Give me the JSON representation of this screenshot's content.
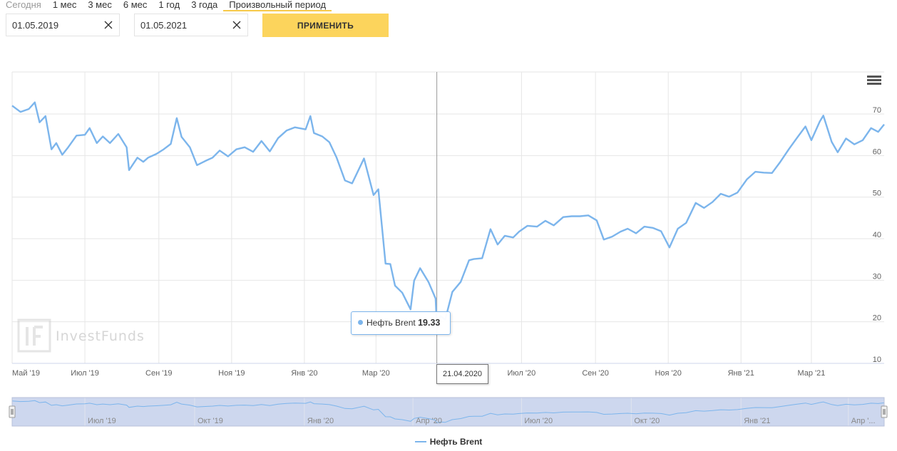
{
  "period_tabs": [
    {
      "label": "Сегодня"
    },
    {
      "label": "1 мес"
    },
    {
      "label": "3 мес"
    },
    {
      "label": "6 мес"
    },
    {
      "label": "1 год"
    },
    {
      "label": "3 года"
    },
    {
      "label": "Произвольный период"
    }
  ],
  "date_from": {
    "value": "01.05.2019"
  },
  "date_to": {
    "value": "01.05.2021"
  },
  "apply_label": "ПРИМЕНИТЬ",
  "watermark": "InvestFunds",
  "tooltip": {
    "series": "Нефть Brent",
    "value": "19.33"
  },
  "crosshair_label": "21.04.2020",
  "icons": {
    "menu": "hamburger-menu-icon",
    "clear": "close-icon",
    "handle": "navigator-handle-icon"
  },
  "colors": {
    "series": "#7cb5ec",
    "accent": "#fcd45c",
    "navigator_mask": "#cdd7ee"
  },
  "chart_data": {
    "type": "line",
    "title": "",
    "ylim": [
      10,
      70
    ],
    "y_ticks": [
      10,
      20,
      30,
      40,
      50,
      60,
      70
    ],
    "x_range": [
      "2019-05-01",
      "2021-05-01"
    ],
    "x_tick_labels": [
      {
        "date": "2019-05-01",
        "label": "Май '19"
      },
      {
        "date": "2019-07-01",
        "label": "Июл '19"
      },
      {
        "date": "2019-09-01",
        "label": "Сен '19"
      },
      {
        "date": "2019-11-01",
        "label": "Ноя '19"
      },
      {
        "date": "2020-01-01",
        "label": "Янв '20"
      },
      {
        "date": "2020-03-01",
        "label": "Мар '20"
      },
      {
        "date": "2020-07-01",
        "label": "Июл '20"
      },
      {
        "date": "2020-09-01",
        "label": "Сен '20"
      },
      {
        "date": "2020-11-01",
        "label": "Ноя '20"
      },
      {
        "date": "2021-01-01",
        "label": "Янв '21"
      },
      {
        "date": "2021-03-01",
        "label": "Мар '21"
      }
    ],
    "navigator_labels": [
      {
        "date": "2019-07-01",
        "label": "Июл '19"
      },
      {
        "date": "2019-10-01",
        "label": "Окт '19"
      },
      {
        "date": "2020-01-01",
        "label": "Янв '20"
      },
      {
        "date": "2020-04-01",
        "label": "Апр '20"
      },
      {
        "date": "2020-07-01",
        "label": "Июл '20"
      },
      {
        "date": "2020-10-01",
        "label": "Окт '20"
      },
      {
        "date": "2021-01-01",
        "label": "Янв '21"
      },
      {
        "date": "2021-04-01",
        "label": "Апр '..."
      }
    ],
    "grid": true,
    "legend": "bottom-center",
    "series": [
      {
        "name": "Нефть Brent",
        "points": [
          [
            "2019-05-01",
            72.0
          ],
          [
            "2019-05-08",
            70.5
          ],
          [
            "2019-05-15",
            71.2
          ],
          [
            "2019-05-20",
            72.8
          ],
          [
            "2019-05-24",
            68.0
          ],
          [
            "2019-05-29",
            69.5
          ],
          [
            "2019-06-03",
            61.5
          ],
          [
            "2019-06-07",
            63.0
          ],
          [
            "2019-06-12",
            60.2
          ],
          [
            "2019-06-17",
            62.0
          ],
          [
            "2019-06-24",
            64.8
          ],
          [
            "2019-07-01",
            65.0
          ],
          [
            "2019-07-05",
            66.6
          ],
          [
            "2019-07-11",
            63.0
          ],
          [
            "2019-07-16",
            64.6
          ],
          [
            "2019-07-22",
            63.0
          ],
          [
            "2019-07-29",
            65.2
          ],
          [
            "2019-08-05",
            62.0
          ],
          [
            "2019-08-07",
            56.5
          ],
          [
            "2019-08-14",
            59.5
          ],
          [
            "2019-08-19",
            58.5
          ],
          [
            "2019-08-23",
            59.5
          ],
          [
            "2019-08-30",
            60.4
          ],
          [
            "2019-09-05",
            61.5
          ],
          [
            "2019-09-11",
            62.8
          ],
          [
            "2019-09-16",
            69.0
          ],
          [
            "2019-09-20",
            64.5
          ],
          [
            "2019-09-27",
            62.0
          ],
          [
            "2019-10-03",
            57.7
          ],
          [
            "2019-10-10",
            58.7
          ],
          [
            "2019-10-16",
            59.5
          ],
          [
            "2019-10-22",
            61.2
          ],
          [
            "2019-10-29",
            59.8
          ],
          [
            "2019-11-05",
            61.5
          ],
          [
            "2019-11-12",
            62.0
          ],
          [
            "2019-11-19",
            60.9
          ],
          [
            "2019-11-26",
            63.5
          ],
          [
            "2019-12-03",
            61.0
          ],
          [
            "2019-12-10",
            64.2
          ],
          [
            "2019-12-17",
            66.0
          ],
          [
            "2019-12-24",
            66.8
          ],
          [
            "2020-01-02",
            66.3
          ],
          [
            "2020-01-06",
            69.5
          ],
          [
            "2020-01-09",
            65.4
          ],
          [
            "2020-01-16",
            64.6
          ],
          [
            "2020-01-22",
            63.2
          ],
          [
            "2020-01-28",
            59.5
          ],
          [
            "2020-02-04",
            54.0
          ],
          [
            "2020-02-10",
            53.3
          ],
          [
            "2020-02-20",
            59.3
          ],
          [
            "2020-02-28",
            50.5
          ],
          [
            "2020-03-03",
            51.9
          ],
          [
            "2020-03-09",
            34.0
          ],
          [
            "2020-03-13",
            33.9
          ],
          [
            "2020-03-17",
            28.7
          ],
          [
            "2020-03-23",
            27.0
          ],
          [
            "2020-03-30",
            23.0
          ],
          [
            "2020-04-02",
            29.9
          ],
          [
            "2020-04-07",
            32.9
          ],
          [
            "2020-04-14",
            29.6
          ],
          [
            "2020-04-20",
            25.6
          ],
          [
            "2020-04-21",
            19.33
          ],
          [
            "2020-04-24",
            21.4
          ],
          [
            "2020-04-28",
            20.5
          ],
          [
            "2020-05-04",
            27.2
          ],
          [
            "2020-05-11",
            29.6
          ],
          [
            "2020-05-18",
            34.8
          ],
          [
            "2020-05-22",
            35.1
          ],
          [
            "2020-05-29",
            35.3
          ],
          [
            "2020-06-05",
            42.3
          ],
          [
            "2020-06-11",
            38.6
          ],
          [
            "2020-06-17",
            40.7
          ],
          [
            "2020-06-24",
            40.3
          ],
          [
            "2020-06-29",
            41.7
          ],
          [
            "2020-07-06",
            43.1
          ],
          [
            "2020-07-14",
            42.9
          ],
          [
            "2020-07-21",
            44.3
          ],
          [
            "2020-07-28",
            43.2
          ],
          [
            "2020-08-05",
            45.2
          ],
          [
            "2020-08-12",
            45.4
          ],
          [
            "2020-08-19",
            45.4
          ],
          [
            "2020-08-26",
            45.6
          ],
          [
            "2020-09-02",
            44.4
          ],
          [
            "2020-09-08",
            39.8
          ],
          [
            "2020-09-15",
            40.5
          ],
          [
            "2020-09-22",
            41.7
          ],
          [
            "2020-09-28",
            42.4
          ],
          [
            "2020-10-05",
            41.3
          ],
          [
            "2020-10-12",
            42.9
          ],
          [
            "2020-10-19",
            42.6
          ],
          [
            "2020-10-26",
            41.8
          ],
          [
            "2020-11-02",
            37.9
          ],
          [
            "2020-11-09",
            42.4
          ],
          [
            "2020-11-16",
            43.8
          ],
          [
            "2020-11-24",
            48.6
          ],
          [
            "2020-12-01",
            47.4
          ],
          [
            "2020-12-08",
            48.8
          ],
          [
            "2020-12-15",
            50.8
          ],
          [
            "2020-12-22",
            50.1
          ],
          [
            "2020-12-29",
            51.1
          ],
          [
            "2021-01-06",
            54.3
          ],
          [
            "2021-01-13",
            56.1
          ],
          [
            "2021-01-20",
            55.9
          ],
          [
            "2021-01-27",
            55.8
          ],
          [
            "2021-02-03",
            58.5
          ],
          [
            "2021-02-10",
            61.5
          ],
          [
            "2021-02-17",
            64.3
          ],
          [
            "2021-02-24",
            67.0
          ],
          [
            "2021-03-01",
            63.7
          ],
          [
            "2021-03-08",
            68.2
          ],
          [
            "2021-03-11",
            69.6
          ],
          [
            "2021-03-18",
            63.3
          ],
          [
            "2021-03-23",
            60.8
          ],
          [
            "2021-03-30",
            64.1
          ],
          [
            "2021-04-06",
            62.7
          ],
          [
            "2021-04-13",
            63.7
          ],
          [
            "2021-04-20",
            66.6
          ],
          [
            "2021-04-26",
            65.7
          ],
          [
            "2021-05-01",
            67.5
          ]
        ]
      }
    ]
  },
  "legend_label": "Нефть Brent"
}
